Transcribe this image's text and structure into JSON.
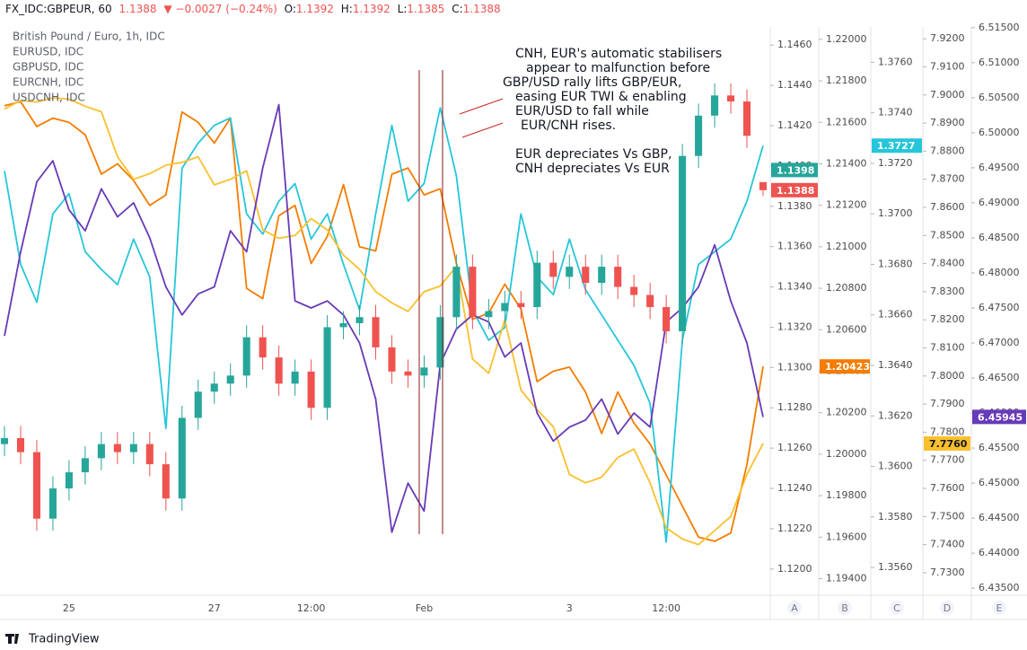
{
  "header": {
    "symbol": "FX_IDC:GBPEUR, 60",
    "last": "1.1388",
    "change": "▼ −0.0027 (−0.24%)",
    "ohlc": [
      {
        "label": "O:",
        "value": "1.1392"
      },
      {
        "label": "H:",
        "value": "1.1392"
      },
      {
        "label": "L:",
        "value": "1.1385"
      },
      {
        "label": "C:",
        "value": "1.1388"
      }
    ]
  },
  "annotation": [
    "CNH, EUR's automatic stabilisers",
    "appear to malfunction before",
    "GBP/USD rally lifts GBP/EUR,",
    "easing EUR TWI & enabling",
    "EUR/USD to fall while",
    "EUR/CNH rises.",
    "EUR depreciates Vs GBP,",
    "CNH depreciates Vs EUR"
  ],
  "footer": "TradingView",
  "chart_data": {
    "type": "candlestick",
    "name": "British Pound / Euro, 1h, IDC",
    "axis_names": [
      "A",
      "B",
      "C",
      "D",
      "E"
    ],
    "categories": [
      null,
      null,
      null,
      null,
      "25",
      null,
      null,
      null,
      null,
      null,
      null,
      null,
      null,
      "27",
      null,
      null,
      null,
      null,
      null,
      "12:00",
      null,
      null,
      null,
      null,
      null,
      null,
      "Feb",
      null,
      null,
      null,
      null,
      null,
      null,
      null,
      null,
      "3",
      null,
      null,
      null,
      null,
      null,
      "12:00",
      null,
      null,
      null,
      null,
      null,
      null
    ],
    "open": [
      1.1262,
      1.1265,
      1.1258,
      1.1225,
      1.124,
      1.1248,
      1.1255,
      1.1262,
      1.1258,
      1.1262,
      1.1252,
      1.1235,
      1.1275,
      1.1288,
      1.1292,
      1.1296,
      1.1315,
      1.1305,
      1.1292,
      1.1298,
      1.128,
      1.132,
      1.1322,
      1.1325,
      1.131,
      1.1298,
      1.1296,
      1.13,
      1.1325,
      1.135,
      1.1325,
      1.1328,
      1.1332,
      1.133,
      1.1352,
      1.1345,
      1.135,
      1.1342,
      1.135,
      1.134,
      1.1336,
      1.133,
      1.1318,
      1.1405,
      1.1425,
      1.1435,
      1.1432,
      1.1392
    ],
    "high": [
      1.1271,
      1.1271,
      1.1264,
      1.1246,
      1.1254,
      1.1261,
      1.1268,
      1.1268,
      1.1268,
      1.1268,
      1.1258,
      1.1281,
      1.1294,
      1.1298,
      1.1302,
      1.1321,
      1.1321,
      1.1311,
      1.1304,
      1.1304,
      1.1326,
      1.1328,
      1.1331,
      1.1331,
      1.1316,
      1.1304,
      1.1306,
      1.1331,
      1.1356,
      1.1356,
      1.1334,
      1.1338,
      1.1338,
      1.1358,
      1.1358,
      1.1356,
      1.1356,
      1.1356,
      1.1356,
      1.1346,
      1.1342,
      1.1336,
      1.1411,
      1.1431,
      1.1441,
      1.1441,
      1.1438,
      1.1392
    ],
    "low": [
      1.1256,
      1.1252,
      1.1219,
      1.1219,
      1.1234,
      1.1242,
      1.1249,
      1.1252,
      1.1252,
      1.1246,
      1.1229,
      1.1229,
      1.1269,
      1.1282,
      1.1286,
      1.129,
      1.1299,
      1.1286,
      1.1286,
      1.1274,
      1.1274,
      1.1314,
      1.1316,
      1.1304,
      1.1292,
      1.129,
      1.129,
      1.1294,
      1.1319,
      1.1319,
      1.1319,
      1.1322,
      1.1324,
      1.1324,
      1.1339,
      1.1339,
      1.1336,
      1.1336,
      1.1334,
      1.133,
      1.1324,
      1.1312,
      1.1312,
      1.1399,
      1.1419,
      1.1426,
      1.1409,
      1.1385
    ],
    "close": [
      1.1265,
      1.1258,
      1.1225,
      1.124,
      1.1248,
      1.1255,
      1.1262,
      1.1258,
      1.1262,
      1.1252,
      1.1235,
      1.1275,
      1.1288,
      1.1292,
      1.1296,
      1.1315,
      1.1305,
      1.1292,
      1.1298,
      1.128,
      1.132,
      1.1322,
      1.1325,
      1.131,
      1.1298,
      1.1296,
      1.13,
      1.1325,
      1.135,
      1.1325,
      1.1328,
      1.1332,
      1.133,
      1.1352,
      1.1345,
      1.135,
      1.1342,
      1.135,
      1.134,
      1.1336,
      1.133,
      1.1318,
      1.1405,
      1.1425,
      1.1435,
      1.1432,
      1.1415,
      1.1388
    ],
    "up_color": "#26a69a",
    "down_color": "#ef5350",
    "ylim": [
      1.1187,
      1.1469
    ],
    "yticks": [
      {
        "value": 1.12,
        "label": "1.1200"
      },
      {
        "value": 1.122,
        "label": "1.1220"
      },
      {
        "value": 1.124,
        "label": "1.1240"
      },
      {
        "value": 1.126,
        "label": "1.1260"
      },
      {
        "value": 1.128,
        "label": "1.1280"
      },
      {
        "value": 1.13,
        "label": "1.1300"
      },
      {
        "value": 1.132,
        "label": "1.1320"
      },
      {
        "value": 1.134,
        "label": "1.1340"
      },
      {
        "value": 1.136,
        "label": "1.1360"
      },
      {
        "value": 1.138,
        "label": "1.1380"
      },
      {
        "value": 1.14,
        "label": "1.1400"
      },
      {
        "value": 1.142,
        "label": "1.1420"
      },
      {
        "value": 1.144,
        "label": "1.1440"
      },
      {
        "value": 1.146,
        "label": "1.1460"
      }
    ],
    "series": [
      {
        "name": "EURUSD, IDC",
        "color": "#f57c00",
        "values": [
          1.2168,
          1.217,
          1.2158,
          1.2162,
          1.216,
          1.2154,
          1.2135,
          1.214,
          1.2132,
          1.212,
          1.2125,
          1.2165,
          1.216,
          1.215,
          1.2162,
          1.208,
          1.2075,
          1.2115,
          1.212,
          1.2092,
          1.2105,
          1.213,
          1.21,
          1.2098,
          1.2135,
          1.2138,
          1.2125,
          1.2128,
          1.2092,
          1.2065,
          1.2068,
          1.2082,
          1.207,
          1.2035,
          1.204,
          1.2042,
          1.203,
          1.201,
          1.203,
          1.2015,
          1.2005,
          1.199,
          1.1975,
          1.196,
          1.1958,
          1.1962,
          1.1995,
          1.20423
        ],
        "ylim": [
          1.1932,
          1.2206
        ],
        "yticks": [
          {
            "value": 1.194,
            "label": "1.19400"
          },
          {
            "value": 1.196,
            "label": "1.19600"
          },
          {
            "value": 1.198,
            "label": "1.19800"
          },
          {
            "value": 1.2,
            "label": "1.20000"
          },
          {
            "value": 1.202,
            "label": "1.20200"
          },
          {
            "value": 1.204,
            "label": "1.20400"
          },
          {
            "value": 1.206,
            "label": "1.20600"
          },
          {
            "value": 1.208,
            "label": "1.20800"
          },
          {
            "value": 1.21,
            "label": "1.21000"
          },
          {
            "value": 1.212,
            "label": "1.21200"
          },
          {
            "value": 1.214,
            "label": "1.21400"
          },
          {
            "value": 1.216,
            "label": "1.21600"
          },
          {
            "value": 1.218,
            "label": "1.21800"
          },
          {
            "value": 1.22,
            "label": "1.22000"
          }
        ]
      },
      {
        "name": "GBPUSD, IDC",
        "color": "#26c6da",
        "values": [
          1.3717,
          1.368,
          1.3665,
          1.37,
          1.3708,
          1.3685,
          1.3678,
          1.3672,
          1.369,
          1.3675,
          1.3615,
          1.3718,
          1.3728,
          1.3735,
          1.3738,
          1.37,
          1.3692,
          1.3705,
          1.3712,
          1.369,
          1.37,
          1.368,
          1.3662,
          1.37,
          1.3735,
          1.3705,
          1.3712,
          1.3742,
          1.3715,
          1.3662,
          1.365,
          1.3655,
          1.37,
          1.3675,
          1.3668,
          1.369,
          1.367,
          1.366,
          1.365,
          1.364,
          1.3625,
          1.357,
          1.365,
          1.368,
          1.3685,
          1.369,
          1.3705,
          1.3727
        ],
        "ylim": [
          1.3549,
          1.3774
        ],
        "yticks": [
          {
            "value": 1.356,
            "label": "1.3560"
          },
          {
            "value": 1.358,
            "label": "1.3580"
          },
          {
            "value": 1.36,
            "label": "1.3600"
          },
          {
            "value": 1.362,
            "label": "1.3620"
          },
          {
            "value": 1.364,
            "label": "1.3640"
          },
          {
            "value": 1.366,
            "label": "1.3660"
          },
          {
            "value": 1.368,
            "label": "1.3680"
          },
          {
            "value": 1.37,
            "label": "1.3700"
          },
          {
            "value": 1.372,
            "label": "1.3720"
          },
          {
            "value": 1.374,
            "label": "1.3740"
          },
          {
            "value": 1.376,
            "label": "1.3760"
          }
        ]
      },
      {
        "name": "EURCNH, IDC",
        "color": "#fbc02d",
        "values": [
          7.895,
          7.898,
          7.8975,
          7.899,
          7.8985,
          7.896,
          7.894,
          7.878,
          7.87,
          7.872,
          7.875,
          7.876,
          7.878,
          7.868,
          7.87,
          7.873,
          7.852,
          7.849,
          7.85,
          7.856,
          7.852,
          7.843,
          7.838,
          7.83,
          7.826,
          7.823,
          7.83,
          7.832,
          7.839,
          7.806,
          7.801,
          7.82,
          7.795,
          7.788,
          7.782,
          7.765,
          7.762,
          7.764,
          7.771,
          7.774,
          7.762,
          7.746,
          7.742,
          7.74,
          7.745,
          7.75,
          7.765,
          7.776
        ],
        "ylim": [
          7.722,
          7.9242
        ],
        "yticks": [
          {
            "value": 7.73,
            "label": "7.7300"
          },
          {
            "value": 7.74,
            "label": "7.7400"
          },
          {
            "value": 7.75,
            "label": "7.7500"
          },
          {
            "value": 7.76,
            "label": "7.7600"
          },
          {
            "value": 7.77,
            "label": "7.7700"
          },
          {
            "value": 7.78,
            "label": "7.7800"
          },
          {
            "value": 7.79,
            "label": "7.7900"
          },
          {
            "value": 7.8,
            "label": "7.8000"
          },
          {
            "value": 7.81,
            "label": "7.8100"
          },
          {
            "value": 7.82,
            "label": "7.8200"
          },
          {
            "value": 7.83,
            "label": "7.8300"
          },
          {
            "value": 7.84,
            "label": "7.8400"
          },
          {
            "value": 7.85,
            "label": "7.8500"
          },
          {
            "value": 7.86,
            "label": "7.8600"
          },
          {
            "value": 7.87,
            "label": "7.8700"
          },
          {
            "value": 7.88,
            "label": "7.8800"
          },
          {
            "value": 7.89,
            "label": "7.8900"
          },
          {
            "value": 7.9,
            "label": "7.9000"
          },
          {
            "value": 7.91,
            "label": "7.9100"
          },
          {
            "value": 7.92,
            "label": "7.9200"
          }
        ]
      },
      {
        "name": "USDCNH, IDC",
        "color": "#673ab7",
        "values": [
          6.471,
          6.483,
          6.493,
          6.496,
          6.489,
          6.486,
          6.492,
          6.488,
          6.49,
          6.485,
          6.478,
          6.474,
          6.477,
          6.478,
          6.486,
          6.483,
          6.495,
          6.504,
          6.476,
          6.475,
          6.476,
          6.474,
          6.47,
          6.462,
          6.443,
          6.45,
          6.446,
          6.467,
          6.472,
          6.474,
          6.473,
          6.468,
          6.47,
          6.46,
          6.456,
          6.458,
          6.459,
          6.462,
          6.457,
          6.46,
          6.458,
          6.473,
          6.475,
          6.478,
          6.484,
          6.476,
          6.47,
          6.45945
        ],
        "ylim": [
          6.434,
          6.5151
        ],
        "yticks": [
          {
            "value": 6.435,
            "label": "6.43500"
          },
          {
            "value": 6.44,
            "label": "6.44000"
          },
          {
            "value": 6.445,
            "label": "6.44500"
          },
          {
            "value": 6.45,
            "label": "6.45000"
          },
          {
            "value": 6.455,
            "label": "6.45500"
          },
          {
            "value": 6.46,
            "label": "6.46000"
          },
          {
            "value": 6.465,
            "label": "6.46500"
          },
          {
            "value": 6.47,
            "label": "6.47000"
          },
          {
            "value": 6.475,
            "label": "6.47500"
          },
          {
            "value": 6.48,
            "label": "6.48000"
          },
          {
            "value": 6.485,
            "label": "6.48500"
          },
          {
            "value": 6.49,
            "label": "6.49000"
          },
          {
            "value": 6.495,
            "label": "6.49500"
          },
          {
            "value": 6.5,
            "label": "6.50000"
          },
          {
            "value": 6.505,
            "label": "6.50500"
          },
          {
            "value": 6.51,
            "label": "6.51000"
          },
          {
            "value": 6.515,
            "label": "6.51500"
          }
        ]
      }
    ],
    "price_markers": [
      {
        "axis": 0,
        "value": 1.1398,
        "label": "1.1398",
        "color": "#26a69a"
      },
      {
        "axis": 0,
        "value": 1.1388,
        "label": "1.1388",
        "color": "#ef5350"
      },
      {
        "axis": 1,
        "value": 1.20423,
        "label": "1.20423",
        "color": "#f57c00"
      },
      {
        "axis": 2,
        "value": 1.3727,
        "label": "1.3727",
        "color": "#26c6da"
      },
      {
        "axis": 3,
        "value": 7.776,
        "label": "7.7760",
        "color": "#fbc02d"
      },
      {
        "axis": 4,
        "value": 6.45945,
        "label": "6.45945",
        "color": "#673ab7"
      }
    ]
  }
}
